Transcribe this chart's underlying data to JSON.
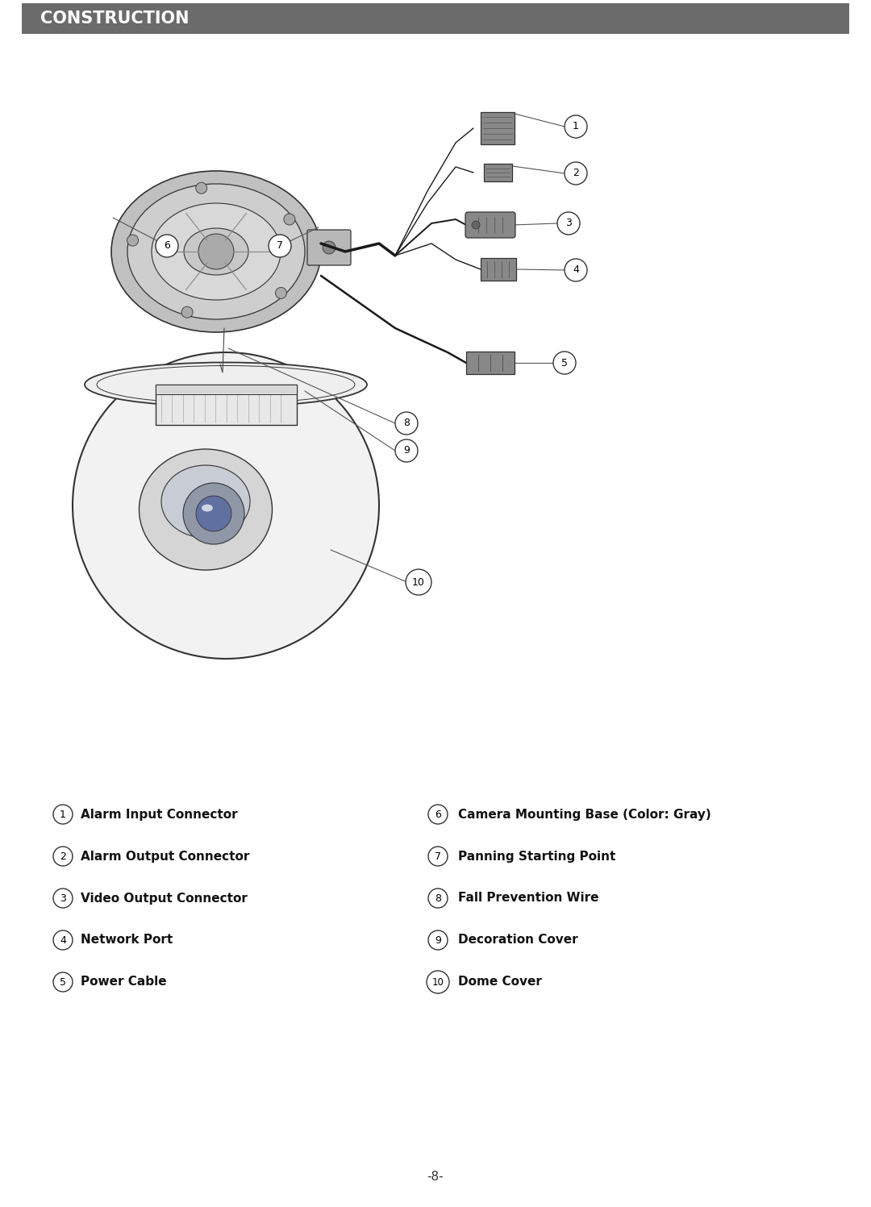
{
  "title": "CONSTRUCTION",
  "title_bg_color": "#6b6b6b",
  "title_text_color": "#ffffff",
  "page_bg_color": "#ffffff",
  "page_number": "-8-",
  "labels_left": [
    {
      "num": "1",
      "text": "Alarm Input Connector"
    },
    {
      "num": "2",
      "text": "Alarm Output Connector"
    },
    {
      "num": "3",
      "text": "Video Output Connector"
    },
    {
      "num": "4",
      "text": "Network Port"
    },
    {
      "num": "5",
      "text": "Power Cable"
    }
  ],
  "labels_right": [
    {
      "num": "6",
      "text": "Camera Mounting Base (Color: Gray)"
    },
    {
      "num": "7",
      "text": "Panning Starting Point"
    },
    {
      "num": "8",
      "text": "Fall Prevention Wire"
    },
    {
      "num": "9",
      "text": "Decoration Cover"
    },
    {
      "num": "10",
      "text": "Dome Cover"
    }
  ],
  "line_color": "#333333",
  "lc_thin": "#555555"
}
